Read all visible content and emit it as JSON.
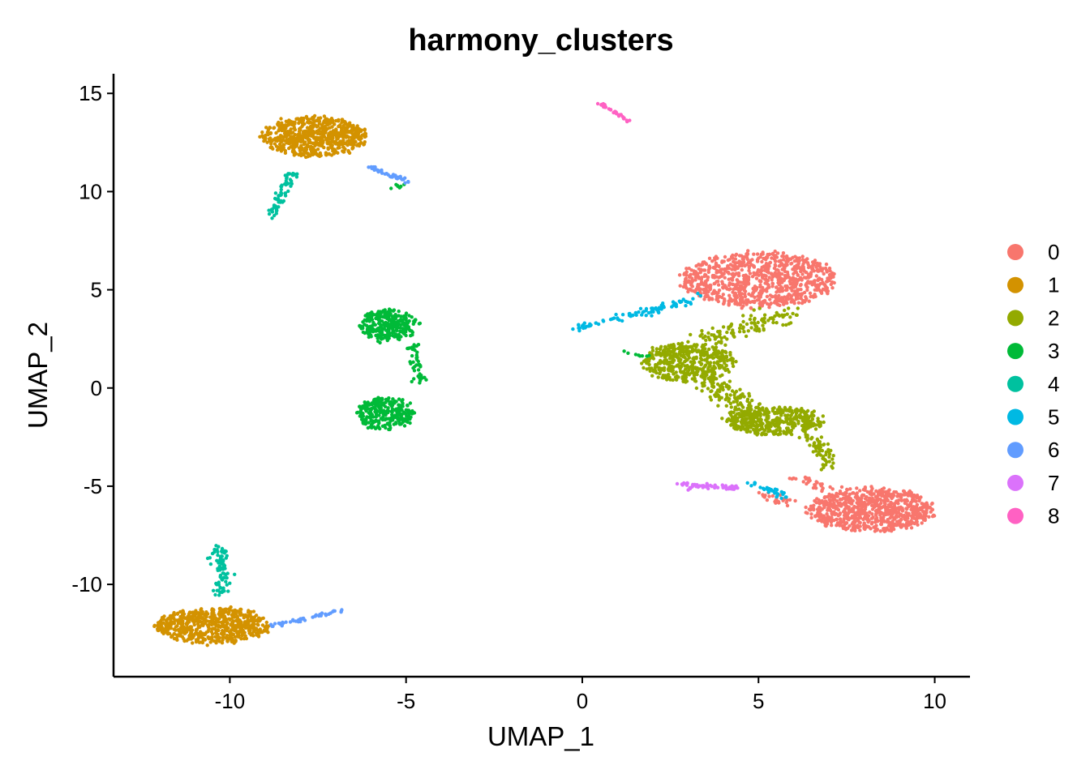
{
  "chart_data": {
    "type": "scatter",
    "title": "harmony_clusters",
    "xlabel": "UMAP_1",
    "ylabel": "UMAP_2",
    "xlim": [
      -13.3,
      11.0
    ],
    "ylim": [
      -14.7,
      16.0
    ],
    "xticks": [
      -10,
      -5,
      0,
      5,
      10
    ],
    "yticks": [
      -10,
      -5,
      0,
      5,
      10,
      15
    ],
    "xtick_labels": [
      "-10",
      "-5",
      "0",
      "5",
      "10"
    ],
    "ytick_labels": [
      "-10",
      "-5",
      "0",
      "5",
      "10",
      "15"
    ],
    "grid": false,
    "legend_position": "right",
    "series": [
      {
        "name": "0",
        "color": "#F8766D"
      },
      {
        "name": "1",
        "color": "#D39200"
      },
      {
        "name": "2",
        "color": "#93AA00"
      },
      {
        "name": "3",
        "color": "#00BA38"
      },
      {
        "name": "4",
        "color": "#00C19F"
      },
      {
        "name": "5",
        "color": "#00B9E3"
      },
      {
        "name": "6",
        "color": "#619CFF"
      },
      {
        "name": "7",
        "color": "#DB72FB"
      },
      {
        "name": "8",
        "color": "#FF61C3"
      }
    ],
    "clusters": [
      {
        "series": "0",
        "shape": "ellipse",
        "cx": 5.0,
        "cy": 5.5,
        "rx": 2.2,
        "ry": 1.4,
        "n": 900
      },
      {
        "series": "0",
        "shape": "ellipse",
        "cx": 8.2,
        "cy": -6.2,
        "rx": 1.8,
        "ry": 1.1,
        "n": 800
      },
      {
        "series": "0",
        "shape": "line",
        "from": [
          6.0,
          -4.5
        ],
        "to": [
          7.2,
          -5.2
        ],
        "spread": 0.3,
        "n": 30
      },
      {
        "series": "0",
        "shape": "line",
        "from": [
          5.0,
          -5.3
        ],
        "to": [
          6.0,
          -6.0
        ],
        "spread": 0.25,
        "n": 25
      },
      {
        "series": "1",
        "shape": "ellipse",
        "cx": -7.6,
        "cy": 12.8,
        "rx": 1.5,
        "ry": 1.0,
        "n": 650
      },
      {
        "series": "1",
        "shape": "ellipse",
        "cx": -10.5,
        "cy": -12.1,
        "rx": 1.6,
        "ry": 0.9,
        "n": 650
      },
      {
        "series": "2",
        "shape": "ellipse",
        "cx": 3.0,
        "cy": 1.3,
        "rx": 1.3,
        "ry": 1.0,
        "n": 450
      },
      {
        "series": "2",
        "shape": "ellipse",
        "cx": 5.5,
        "cy": -1.7,
        "rx": 1.4,
        "ry": 0.7,
        "n": 420
      },
      {
        "series": "2",
        "shape": "line",
        "from": [
          3.5,
          0.5
        ],
        "to": [
          5.0,
          -1.5
        ],
        "spread": 0.45,
        "n": 140
      },
      {
        "series": "2",
        "shape": "line",
        "from": [
          3.5,
          2.5
        ],
        "to": [
          6.0,
          3.8
        ],
        "spread": 0.5,
        "n": 110
      },
      {
        "series": "2",
        "shape": "line",
        "from": [
          6.5,
          -2.5
        ],
        "to": [
          7.0,
          -4.0
        ],
        "spread": 0.3,
        "n": 60
      },
      {
        "series": "3",
        "shape": "ellipse",
        "cx": -5.5,
        "cy": 3.2,
        "rx": 0.8,
        "ry": 0.8,
        "n": 280
      },
      {
        "series": "3",
        "shape": "ellipse",
        "cx": -5.6,
        "cy": -1.3,
        "rx": 0.8,
        "ry": 0.8,
        "n": 280
      },
      {
        "series": "3",
        "shape": "line",
        "from": [
          -4.8,
          2.2
        ],
        "to": [
          -4.6,
          0.2
        ],
        "spread": 0.2,
        "n": 45
      },
      {
        "series": "3",
        "shape": "line",
        "from": [
          2.0,
          1.6
        ],
        "to": [
          1.2,
          1.8
        ],
        "spread": 0.1,
        "n": 8
      },
      {
        "series": "3",
        "shape": "line",
        "from": [
          -5.5,
          10.2
        ],
        "to": [
          -5.1,
          10.3
        ],
        "spread": 0.1,
        "n": 8
      },
      {
        "series": "4",
        "shape": "line",
        "from": [
          -8.2,
          11.0
        ],
        "to": [
          -8.8,
          8.8
        ],
        "spread": 0.15,
        "n": 70
      },
      {
        "series": "4",
        "shape": "line",
        "from": [
          -10.3,
          -8.0
        ],
        "to": [
          -10.2,
          -10.5
        ],
        "spread": 0.25,
        "n": 80
      },
      {
        "series": "5",
        "shape": "line",
        "from": [
          -0.3,
          3.0
        ],
        "to": [
          3.2,
          4.5
        ],
        "spread": 0.2,
        "n": 90
      },
      {
        "series": "5",
        "shape": "line",
        "from": [
          4.8,
          -4.8
        ],
        "to": [
          5.8,
          -5.6
        ],
        "spread": 0.15,
        "n": 30
      },
      {
        "series": "6",
        "shape": "line",
        "from": [
          -6.0,
          11.2
        ],
        "to": [
          -4.9,
          10.5
        ],
        "spread": 0.1,
        "n": 40
      },
      {
        "series": "6",
        "shape": "line",
        "from": [
          -8.8,
          -12.1
        ],
        "to": [
          -6.8,
          -11.3
        ],
        "spread": 0.1,
        "n": 45
      },
      {
        "series": "7",
        "shape": "line",
        "from": [
          2.7,
          -4.9
        ],
        "to": [
          4.4,
          -5.1
        ],
        "spread": 0.15,
        "n": 60
      },
      {
        "series": "8",
        "shape": "line",
        "from": [
          0.5,
          14.5
        ],
        "to": [
          1.3,
          13.6
        ],
        "spread": 0.06,
        "n": 30
      }
    ]
  }
}
